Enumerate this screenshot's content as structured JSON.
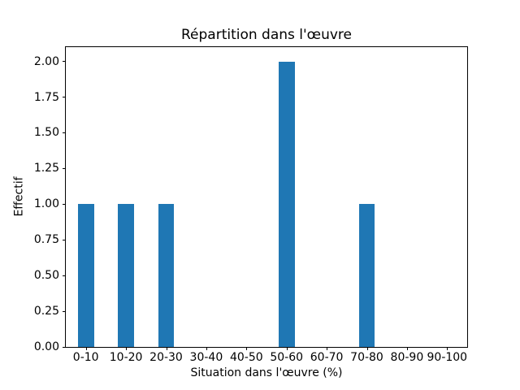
{
  "chart_data": {
    "type": "bar",
    "title": "Répartition dans l'œuvre",
    "xlabel": "Situation dans l'œuvre (%)",
    "ylabel": "Effectif",
    "categories": [
      "0-10",
      "10-20",
      "20-30",
      "30-40",
      "40-50",
      "50-60",
      "60-70",
      "70-80",
      "80-90",
      "90-100"
    ],
    "values": [
      1,
      1,
      1,
      0,
      0,
      2,
      0,
      1,
      0,
      0
    ],
    "ytick_labels": [
      "0.00",
      "0.25",
      "0.50",
      "0.75",
      "1.00",
      "1.25",
      "1.50",
      "1.75",
      "2.00"
    ],
    "yticks": [
      0.0,
      0.25,
      0.5,
      0.75,
      1.0,
      1.25,
      1.5,
      1.75,
      2.0
    ],
    "ylim": [
      0,
      2.1
    ],
    "bar_color": "#1f77b4",
    "background_color": "#ffffff",
    "text_color": "#000000",
    "grid": false,
    "legend": null,
    "bar_width_fraction": 0.4
  }
}
